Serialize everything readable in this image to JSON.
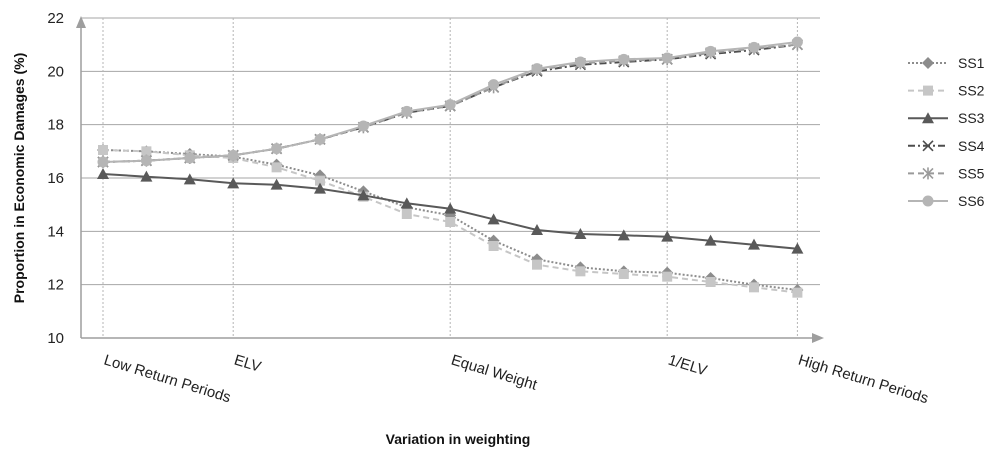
{
  "chart_data": {
    "type": "line",
    "title": "",
    "xlabel": "Variation in weighting",
    "ylabel": "Proportion in Economic Damages (%)",
    "ylim": [
      10,
      22
    ],
    "yticks": [
      "10",
      "12",
      "14",
      "16",
      "18",
      "20",
      "22"
    ],
    "grid": "horizontal",
    "legend_position": "right",
    "categories": [
      "Low Return Periods",
      "",
      "",
      "ELV",
      "",
      "",
      "",
      "",
      "Equal Weight",
      "",
      "",
      "",
      "",
      "1/ELV",
      "",
      "",
      "High Return Periods"
    ],
    "labeled_category_indices": [
      0,
      3,
      8,
      13,
      16
    ],
    "series": [
      {
        "name": "SS1",
        "line": "dotted",
        "marker": "diamond",
        "color": "#8c8c8c",
        "values": [
          17.05,
          17.0,
          16.9,
          16.8,
          16.5,
          16.1,
          15.5,
          14.9,
          14.6,
          13.65,
          12.95,
          12.65,
          12.5,
          12.45,
          12.25,
          12.0,
          11.8
        ]
      },
      {
        "name": "SS2",
        "line": "dashed",
        "marker": "square",
        "color": "#c6c6c6",
        "values": [
          17.05,
          17.0,
          16.85,
          16.75,
          16.4,
          15.9,
          15.3,
          14.65,
          14.35,
          13.45,
          12.75,
          12.5,
          12.4,
          12.3,
          12.1,
          11.9,
          11.7
        ]
      },
      {
        "name": "SS3",
        "line": "solid",
        "marker": "triangle",
        "color": "#595959",
        "values": [
          16.15,
          16.05,
          15.95,
          15.8,
          15.75,
          15.6,
          15.35,
          15.05,
          14.85,
          14.45,
          14.05,
          13.9,
          13.85,
          13.8,
          13.65,
          13.5,
          13.35
        ]
      },
      {
        "name": "SS4",
        "line": "dashdot",
        "marker": "x",
        "color": "#4d4d4d",
        "values": [
          16.6,
          16.65,
          16.75,
          16.85,
          17.1,
          17.45,
          17.9,
          18.45,
          18.7,
          19.4,
          20.0,
          20.25,
          20.35,
          20.45,
          20.65,
          20.8,
          21.0
        ]
      },
      {
        "name": "SS5",
        "line": "dashed",
        "marker": "star",
        "color": "#9a9a9a",
        "values": [
          16.6,
          16.65,
          16.75,
          16.85,
          17.1,
          17.45,
          17.9,
          18.45,
          18.7,
          19.4,
          20.05,
          20.3,
          20.4,
          20.45,
          20.7,
          20.85,
          21.0
        ]
      },
      {
        "name": "SS6",
        "line": "solid",
        "marker": "circle",
        "color": "#b5b5b5",
        "values": [
          16.6,
          16.65,
          16.75,
          16.85,
          17.1,
          17.45,
          17.95,
          18.5,
          18.75,
          19.5,
          20.1,
          20.35,
          20.45,
          20.5,
          20.75,
          20.9,
          21.1
        ]
      }
    ]
  }
}
